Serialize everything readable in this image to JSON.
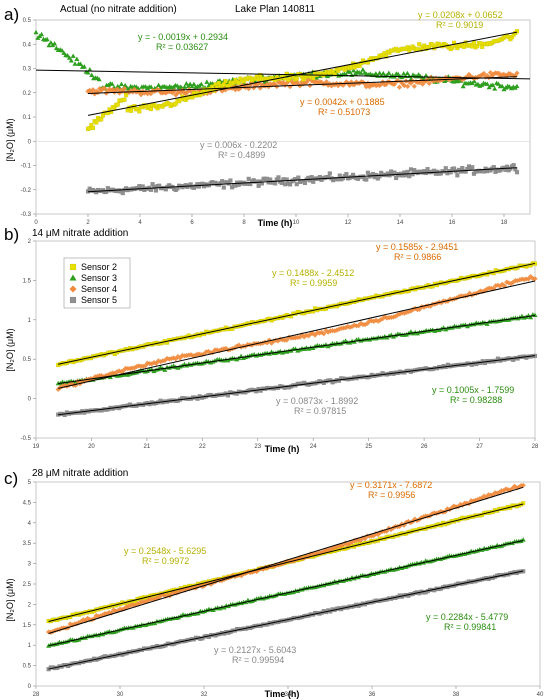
{
  "colors": {
    "s2": "#e8e000",
    "s3": "#2e9e1e",
    "s4": "#f08a3c",
    "s5": "#909090",
    "fit": "#000000",
    "eq_s2": "#b5b000",
    "eq_s3": "#2a8c10",
    "eq_s4": "#d96a00",
    "eq_s5": "#888888"
  },
  "legend": {
    "s2": "Sensor 2",
    "s3": "Sensor 3",
    "s4": "Sensor 4",
    "s5": "Sensor 5"
  },
  "chart_data": [
    {
      "type": "scatter",
      "panel_label": "a)",
      "title": "Actual (no nitrate addition)",
      "subtitle": "Lake Plan 140811",
      "xlabel": "Time (h)",
      "ylabel": "[N₂O] (μM)",
      "xlim": [
        0,
        19
      ],
      "ylim": [
        -0.3,
        0.5
      ],
      "xticks": [
        0,
        2,
        4,
        6,
        8,
        10,
        12,
        14,
        16,
        18
      ],
      "yticks": [
        -0.3,
        -0.2,
        -0.1,
        0,
        0.1,
        0.2,
        0.3,
        0.4,
        0.5
      ],
      "xtick_labels": [
        "0",
        "2",
        "4",
        "6",
        "8",
        "10",
        "12",
        "14",
        "16",
        "18"
      ],
      "ytick_labels": [
        "-0.3",
        "-0.2",
        "-0.1",
        "0",
        "0.1",
        "0.2",
        "0.3",
        "0.4",
        "0.5"
      ],
      "series": [
        {
          "name": "Sensor 2",
          "key": "s2",
          "x_range": [
            2,
            18.5
          ],
          "equation": "y = 0.0208x + 0.0652",
          "r2": "R² = 0.9019",
          "slope": 0.0208,
          "intercept": 0.0652
        },
        {
          "name": "Sensor 3",
          "key": "s3",
          "x_range": [
            0,
            18.5
          ],
          "equation": "y = - 0.0019x + 0.2934",
          "r2": "R² = 0.03627",
          "slope": -0.0019,
          "intercept": 0.2934
        },
        {
          "name": "Sensor 4",
          "key": "s4",
          "x_range": [
            2,
            18.5
          ],
          "equation": "y = 0.0042x + 0.1885",
          "r2": "R² = 0.51073",
          "slope": 0.0042,
          "intercept": 0.1885
        },
        {
          "name": "Sensor 5",
          "key": "s5",
          "x_range": [
            2,
            18.5
          ],
          "equation": "y = 0.006x - 0.2202",
          "r2": "R² = 0.4899",
          "slope": 0.006,
          "intercept": -0.2202
        }
      ]
    },
    {
      "type": "scatter",
      "panel_label": "b)",
      "title": "14 μM nitrate addition",
      "xlabel": "Time (h)",
      "ylabel": "[N₂O] (μM)",
      "xlim": [
        19,
        28
      ],
      "ylim": [
        -0.5,
        2
      ],
      "xticks": [
        19,
        20,
        21,
        22,
        23,
        24,
        25,
        26,
        27,
        28
      ],
      "yticks": [
        -0.5,
        0,
        0.5,
        1,
        1.5,
        2
      ],
      "xtick_labels": [
        "19",
        "20",
        "21",
        "22",
        "23",
        "24",
        "25",
        "26",
        "27",
        "28"
      ],
      "ytick_labels": [
        "-0.5",
        "0",
        "0.5",
        "1",
        "1.5",
        "2"
      ],
      "series": [
        {
          "name": "Sensor 2",
          "key": "s2",
          "x_range": [
            19.4,
            28
          ],
          "equation": "y = 0.1488x - 2.4512",
          "r2": "R² = 0.9959",
          "slope": 0.1488,
          "intercept": -2.4512
        },
        {
          "name": "Sensor 3",
          "key": "s3",
          "x_range": [
            19.4,
            28
          ],
          "equation": "y = 0.1005x - 1.7599",
          "r2": "R² = 0.98288",
          "slope": 0.1005,
          "intercept": -1.7599
        },
        {
          "name": "Sensor 4",
          "key": "s4",
          "x_range": [
            19.4,
            28
          ],
          "equation": "y = 0.1585x - 2.9451",
          "r2": "R² = 0.9866",
          "slope": 0.1585,
          "intercept": -2.9451
        },
        {
          "name": "Sensor 5",
          "key": "s5",
          "x_range": [
            19.4,
            28
          ],
          "equation": "y = 0.0873x - 1.8992",
          "r2": "R² = 0.97815",
          "slope": 0.0873,
          "intercept": -1.8992
        }
      ]
    },
    {
      "type": "scatter",
      "panel_label": "c)",
      "title": "28 μM nitrate addition",
      "xlabel": "Time (h)",
      "ylabel": "[N₂O] (μM)",
      "xlim": [
        28,
        40
      ],
      "ylim": [
        0,
        5
      ],
      "xticks": [
        28,
        30,
        32,
        34,
        36,
        38,
        40
      ],
      "yticks": [
        0,
        0.5,
        1,
        1.5,
        2,
        2.5,
        3,
        3.5,
        4,
        4.5,
        5
      ],
      "xtick_labels": [
        "28",
        "30",
        "32",
        "34",
        "36",
        "38",
        "40"
      ],
      "ytick_labels": [
        "0",
        "0.5",
        "1",
        "1.5",
        "2",
        "2.5",
        "3",
        "3.5",
        "4",
        "4.5",
        "5"
      ],
      "series": [
        {
          "name": "Sensor 2",
          "key": "s2",
          "x_range": [
            28.3,
            39.6
          ],
          "equation": "y = 0.2548x - 5.6295",
          "r2": "R² = 0.9972",
          "slope": 0.2548,
          "intercept": -5.6295
        },
        {
          "name": "Sensor 3",
          "key": "s3",
          "x_range": [
            28.3,
            39.6
          ],
          "equation": "y = 0.2284x - 5.4779",
          "r2": "R² = 0.99841",
          "slope": 0.2284,
          "intercept": -5.4779
        },
        {
          "name": "Sensor 4",
          "key": "s4",
          "x_range": [
            28.3,
            39.6
          ],
          "equation": "y = 0.3171x - 7.6872",
          "r2": "R² = 0.9956",
          "slope": 0.3171,
          "intercept": -7.6872
        },
        {
          "name": "Sensor 5",
          "key": "s5",
          "x_range": [
            28.3,
            39.6
          ],
          "equation": "y = 0.2127x - 5.6043",
          "r2": "R² = 0.99594",
          "slope": 0.2127,
          "intercept": -5.6043
        }
      ]
    }
  ]
}
